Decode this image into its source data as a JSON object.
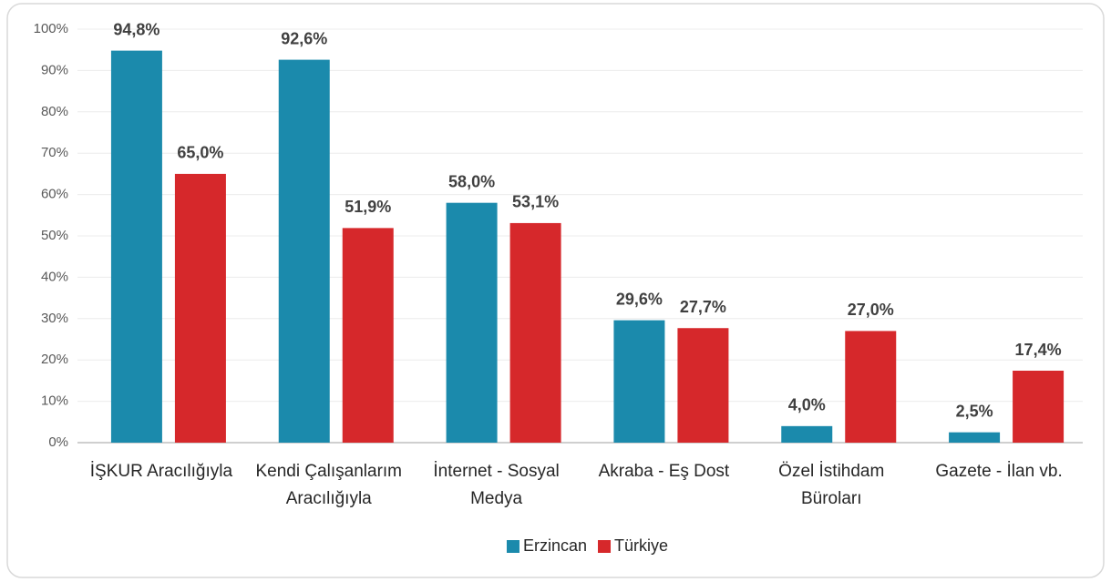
{
  "chart_data": {
    "type": "bar",
    "categories": [
      "İŞKUR Aracılığıyla",
      "Kendi Çalışanlarım Aracılığıyla",
      "İnternet - Sosyal Medya",
      "Akraba - Eş Dost",
      "Özel İstihdam Büroları",
      "Gazete - İlan vb."
    ],
    "series": [
      {
        "name": "Erzincan",
        "color": "#1b8aac",
        "values": [
          94.8,
          92.6,
          58.0,
          29.6,
          4.0,
          2.5
        ],
        "value_labels": [
          "94,8%",
          "92,6%",
          "58,0%",
          "29,6%",
          "4,0%",
          "2,5%"
        ]
      },
      {
        "name": "Türkiye",
        "color": "#d6282b",
        "values": [
          65.0,
          51.9,
          53.1,
          27.7,
          27.0,
          17.4
        ],
        "value_labels": [
          "65,0%",
          "51,9%",
          "53,1%",
          "27,7%",
          "27,0%",
          "17,4%"
        ]
      }
    ],
    "ylim": [
      0,
      100
    ],
    "yticks": [
      {
        "value": 0,
        "label": "0%"
      },
      {
        "value": 10,
        "label": "10%"
      },
      {
        "value": 20,
        "label": "20%"
      },
      {
        "value": 30,
        "label": "30%"
      },
      {
        "value": 40,
        "label": "40%"
      },
      {
        "value": 50,
        "label": "50%"
      },
      {
        "value": 60,
        "label": "60%"
      },
      {
        "value": 70,
        "label": "70%"
      },
      {
        "value": 80,
        "label": "80%"
      },
      {
        "value": 90,
        "label": "90%"
      },
      {
        "value": 100,
        "label": "100%"
      }
    ],
    "grid": true,
    "legend": "bottom"
  }
}
